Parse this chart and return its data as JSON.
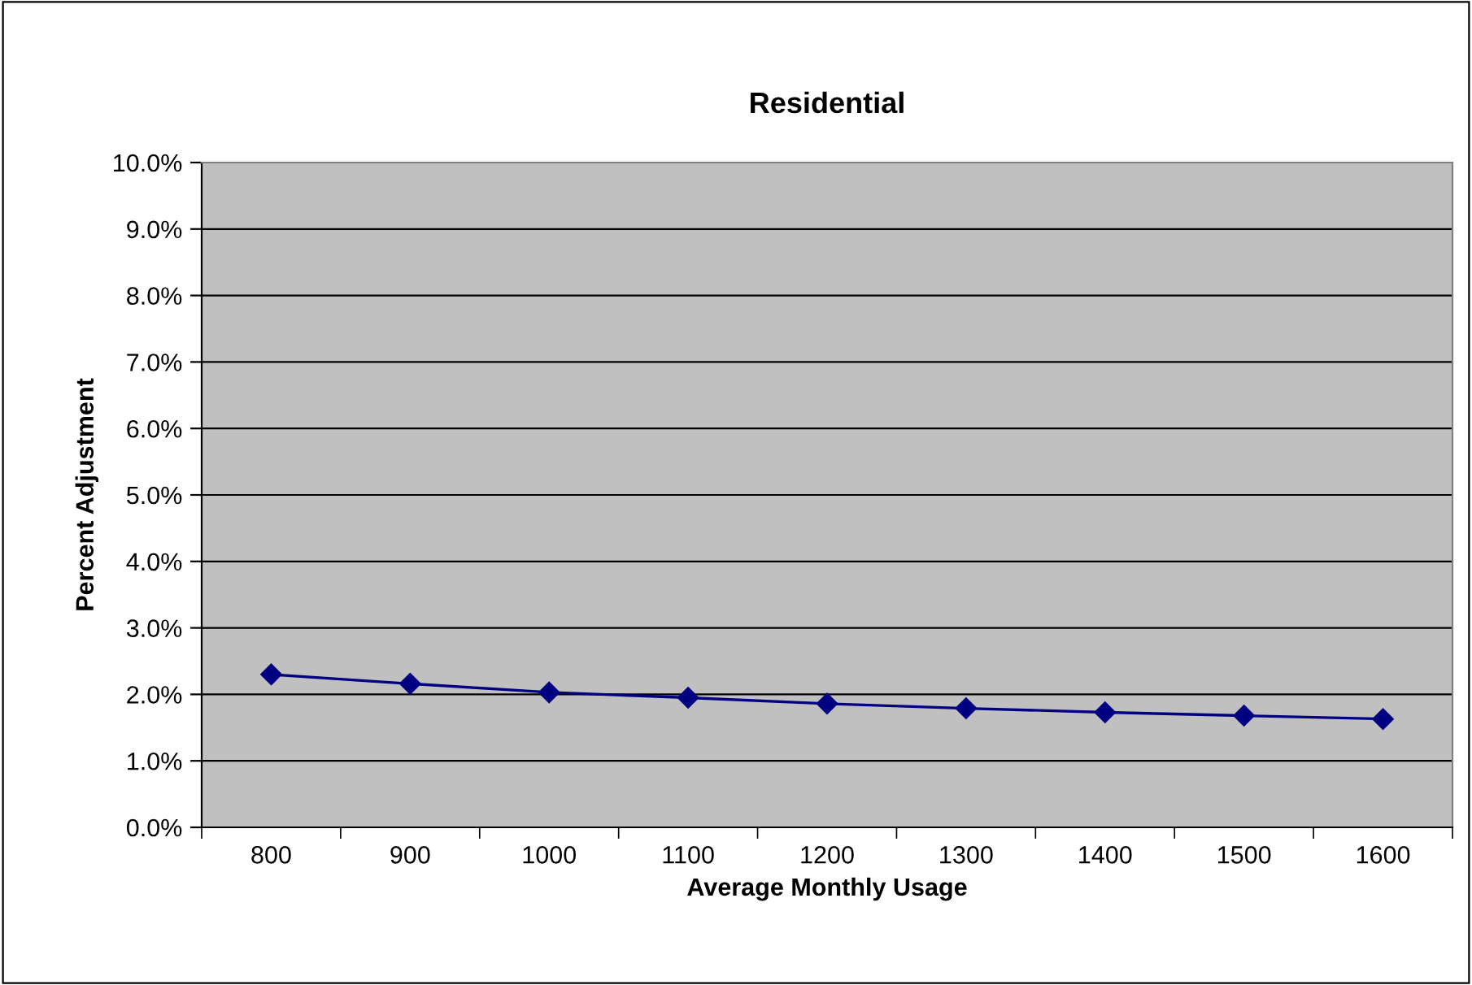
{
  "chart_data": {
    "type": "line",
    "title": "Residential",
    "xlabel": "Average Monthly Usage",
    "ylabel": "Percent Adjustment",
    "categories": [
      "800",
      "900",
      "1000",
      "1100",
      "1200",
      "1300",
      "1400",
      "1500",
      "1600"
    ],
    "series": [
      {
        "color": "#000080",
        "values": [
          2.3,
          2.16,
          2.03,
          1.95,
          1.86,
          1.79,
          1.73,
          1.68,
          1.63
        ]
      }
    ],
    "ylim": [
      0,
      10
    ],
    "yticks": [
      {
        "value": 0,
        "label": "0.0%"
      },
      {
        "value": 1,
        "label": "1.0%"
      },
      {
        "value": 2,
        "label": "2.0%"
      },
      {
        "value": 3,
        "label": "3.0%"
      },
      {
        "value": 4,
        "label": "4.0%"
      },
      {
        "value": 5,
        "label": "5.0%"
      },
      {
        "value": 6,
        "label": "6.0%"
      },
      {
        "value": 7,
        "label": "7.0%"
      },
      {
        "value": 8,
        "label": "8.0%"
      },
      {
        "value": 9,
        "label": "9.0%"
      },
      {
        "value": 10,
        "label": "10.0%"
      }
    ],
    "grid": "y",
    "marker": "diamond",
    "line_style": "solid",
    "legend": false
  }
}
